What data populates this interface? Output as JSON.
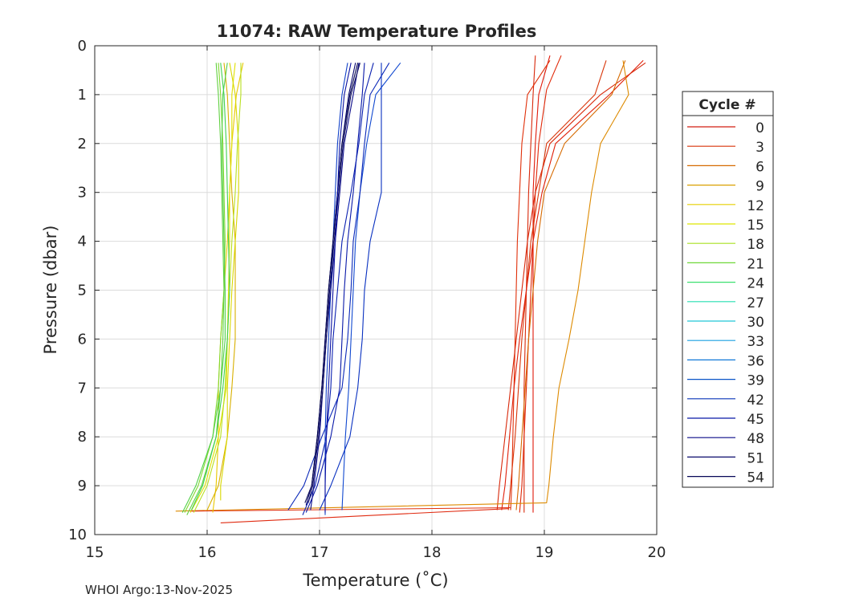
{
  "chart_data": {
    "type": "line",
    "title": "11074: RAW Temperature Profiles",
    "xlabel": "Temperature (˚C)",
    "ylabel": "Pressure (dbar)",
    "xlim": [
      15,
      20
    ],
    "ylim": [
      0,
      10
    ],
    "y_reversed": true,
    "grid": true,
    "x_ticks": [
      "15",
      "16",
      "17",
      "18",
      "19",
      "20"
    ],
    "y_ticks": [
      "0",
      "1",
      "2",
      "3",
      "4",
      "5",
      "6",
      "7",
      "8",
      "9",
      "10"
    ],
    "legend": {
      "title": "Cycle #",
      "placement": "right",
      "entries": [
        {
          "label": "0",
          "color": "#d21e10"
        },
        {
          "label": "3",
          "color": "#d9330a"
        },
        {
          "label": "6",
          "color": "#d66a00"
        },
        {
          "label": "9",
          "color": "#d9a000"
        },
        {
          "label": "12",
          "color": "#e6cf00"
        },
        {
          "label": "15",
          "color": "#dde600"
        },
        {
          "label": "18",
          "color": "#a8e020"
        },
        {
          "label": "21",
          "color": "#6ed838"
        },
        {
          "label": "24",
          "color": "#3ce070"
        },
        {
          "label": "27",
          "color": "#25dfb0"
        },
        {
          "label": "30",
          "color": "#20c8d8"
        },
        {
          "label": "33",
          "color": "#1a9fe0"
        },
        {
          "label": "36",
          "color": "#1078d8"
        },
        {
          "label": "39",
          "color": "#0a55c8"
        },
        {
          "label": "42",
          "color": "#0834b8"
        },
        {
          "label": "45",
          "color": "#0818a8"
        },
        {
          "label": "48",
          "color": "#0a0a88"
        },
        {
          "label": "51",
          "color": "#0a0a6c"
        },
        {
          "label": "54",
          "color": "#080858"
        }
      ]
    },
    "series": [
      {
        "name": "p01",
        "color": "#e01a0a",
        "temp": [
          19.05,
          18.95,
          18.92,
          18.9,
          18.9,
          18.9,
          18.9,
          18.9,
          18.9,
          18.9,
          18.9
        ],
        "pres": [
          0.2,
          1.0,
          2.0,
          3.0,
          4.0,
          5.0,
          6.0,
          7.0,
          8.0,
          9.0,
          9.55
        ]
      },
      {
        "name": "p02",
        "color": "#d8280a",
        "temp": [
          18.92,
          18.9,
          18.88,
          18.86,
          18.85,
          18.84,
          18.83,
          18.82,
          18.82,
          18.82,
          18.82
        ],
        "pres": [
          0.2,
          1.0,
          2.0,
          3.0,
          4.0,
          5.0,
          6.0,
          7.0,
          8.0,
          9.0,
          9.55
        ]
      },
      {
        "name": "p03",
        "color": "#e0300a",
        "temp": [
          19.05,
          18.85,
          18.8,
          18.78,
          18.76,
          18.75,
          18.74,
          18.73,
          18.72,
          18.71,
          18.7
        ],
        "pres": [
          0.3,
          1.0,
          2.0,
          3.0,
          4.0,
          5.0,
          6.0,
          7.0,
          8.0,
          9.0,
          9.5
        ]
      },
      {
        "name": "p04",
        "color": "#e02808",
        "temp": [
          19.15,
          19.02,
          18.95,
          18.92,
          18.9,
          18.88,
          18.86,
          18.84,
          18.82,
          18.8,
          18.78
        ],
        "pres": [
          0.2,
          0.9,
          2.0,
          3.0,
          4.0,
          5.0,
          6.0,
          7.0,
          8.0,
          9.0,
          9.55
        ]
      },
      {
        "name": "p05",
        "color": "#d8360a",
        "temp": [
          19.55,
          19.45,
          19.02,
          18.95,
          18.88,
          18.84,
          18.8,
          18.77,
          18.74,
          18.7,
          18.68
        ],
        "pres": [
          0.3,
          1.0,
          2.0,
          3.0,
          4.0,
          5.0,
          6.0,
          7.0,
          8.0,
          9.0,
          9.5
        ]
      },
      {
        "name": "p06",
        "color": "#e0200a",
        "temp": [
          19.88,
          19.58,
          19.1,
          18.98,
          18.9,
          18.84,
          18.78,
          18.73,
          18.69,
          18.65,
          18.62
        ],
        "pres": [
          0.3,
          1.0,
          2.0,
          3.0,
          4.0,
          5.0,
          6.0,
          7.0,
          8.0,
          9.0,
          9.5
        ]
      },
      {
        "name": "p07",
        "color": "#d8280a",
        "temp": [
          19.9,
          19.5,
          19.05,
          18.92,
          18.85,
          18.8,
          18.75,
          18.7,
          18.65,
          18.6,
          18.58
        ],
        "pres": [
          0.35,
          1.0,
          2.0,
          3.0,
          4.0,
          5.0,
          6.0,
          7.0,
          8.0,
          9.0,
          9.5
        ]
      },
      {
        "name": "p08",
        "color": "#d66a00",
        "temp": [
          19.72,
          19.6,
          19.18,
          19.0,
          18.94,
          18.9,
          18.86,
          18.83,
          18.8,
          18.77,
          18.75
        ],
        "pres": [
          0.3,
          1.0,
          2.0,
          3.0,
          4.0,
          5.0,
          6.0,
          7.0,
          8.0,
          9.0,
          9.5
        ]
      },
      {
        "name": "p09",
        "color": "#dd8a00",
        "temp": [
          19.7,
          19.75,
          19.5,
          19.42,
          19.36,
          19.3,
          19.22,
          19.13,
          19.08,
          19.04,
          19.02,
          15.72
        ],
        "pres": [
          0.3,
          1.0,
          2.0,
          3.0,
          4.0,
          5.0,
          6.0,
          7.0,
          8.0,
          9.0,
          9.35,
          9.52
        ]
      },
      {
        "name": "p10",
        "color": "#e03010",
        "temp": [
          18.7,
          15.85
        ],
        "pres": [
          9.45,
          9.52
        ]
      },
      {
        "name": "p11",
        "color": "#e02a10",
        "temp": [
          18.68,
          16.12
        ],
        "pres": [
          9.47,
          9.76
        ]
      },
      {
        "name": "y1",
        "color": "#e8c800",
        "temp": [
          16.32,
          16.26,
          16.22,
          16.2,
          16.18,
          16.15,
          16.12,
          16.1,
          16.1,
          16.08,
          16.05
        ],
        "pres": [
          0.35,
          1.0,
          2.0,
          3.0,
          4.0,
          5.0,
          6.0,
          7.0,
          8.0,
          9.0,
          9.55
        ]
      },
      {
        "name": "y2",
        "color": "#d8b000",
        "temp": [
          16.15,
          16.18,
          16.2,
          16.22,
          16.25,
          16.25,
          16.25,
          16.22,
          16.18,
          16.1,
          16.0
        ],
        "pres": [
          0.35,
          1.0,
          2.0,
          3.0,
          4.0,
          5.0,
          6.0,
          7.0,
          8.0,
          9.0,
          9.5
        ]
      },
      {
        "name": "y3",
        "color": "#e0e000",
        "temp": [
          16.25,
          16.22,
          16.22,
          16.2,
          16.2,
          16.19,
          16.18,
          16.17,
          16.1,
          15.98,
          15.85
        ],
        "pres": [
          0.35,
          1.0,
          2.0,
          3.0,
          4.0,
          5.0,
          6.0,
          7.0,
          8.0,
          9.0,
          9.55
        ]
      },
      {
        "name": "y4",
        "color": "#d8d800",
        "temp": [
          16.2,
          16.25,
          16.28,
          16.28,
          16.25,
          16.22,
          16.2,
          16.18,
          16.18,
          16.12,
          16.12
        ],
        "pres": [
          0.35,
          1.0,
          2.0,
          3.0,
          4.0,
          5.0,
          6.0,
          7.0,
          8.0,
          9.0,
          9.3
        ]
      },
      {
        "name": "y5",
        "color": "#b8e020",
        "temp": [
          16.3,
          16.3,
          16.27,
          16.25,
          16.22,
          16.2,
          16.18,
          16.16,
          16.12,
          16.0,
          15.88
        ],
        "pres": [
          0.35,
          1.0,
          2.0,
          3.0,
          4.0,
          5.0,
          6.0,
          7.0,
          8.0,
          9.0,
          9.55
        ]
      },
      {
        "name": "g1",
        "color": "#80d830",
        "temp": [
          16.1,
          16.12,
          16.14,
          16.15,
          16.16,
          16.15,
          16.12,
          16.1,
          16.05,
          15.92,
          15.8
        ],
        "pres": [
          0.35,
          1.0,
          2.0,
          3.0,
          4.0,
          5.0,
          6.0,
          7.0,
          8.0,
          9.0,
          9.55
        ]
      },
      {
        "name": "g2",
        "color": "#60d040",
        "temp": [
          16.08,
          16.1,
          16.12,
          16.13,
          16.14,
          16.15,
          16.14,
          16.12,
          16.08,
          15.95,
          15.82
        ],
        "pres": [
          0.35,
          1.0,
          2.0,
          3.0,
          4.0,
          5.0,
          6.0,
          7.0,
          8.0,
          9.0,
          9.6
        ]
      },
      {
        "name": "g3",
        "color": "#50d048",
        "temp": [
          16.18,
          16.14,
          16.13,
          16.14,
          16.15,
          16.16,
          16.16,
          16.12,
          16.05,
          15.9,
          15.78
        ],
        "pres": [
          0.35,
          1.0,
          2.0,
          3.0,
          4.0,
          5.0,
          6.0,
          7.0,
          8.0,
          9.0,
          9.55
        ]
      },
      {
        "name": "g4",
        "color": "#40d050",
        "temp": [
          16.12,
          16.15,
          16.17,
          16.18,
          16.19,
          16.2,
          16.18,
          16.14,
          16.08,
          15.96,
          15.86
        ],
        "pres": [
          0.35,
          1.0,
          2.0,
          3.0,
          4.0,
          5.0,
          6.0,
          7.0,
          8.0,
          9.0,
          9.5
        ]
      },
      {
        "name": "b1",
        "color": "#1048d0",
        "temp": [
          17.72,
          17.5,
          17.42,
          17.36,
          17.32,
          17.3,
          17.28,
          17.26,
          17.23,
          17.21,
          17.2
        ],
        "pres": [
          0.35,
          1.0,
          2.0,
          3.0,
          4.0,
          5.0,
          6.0,
          7.0,
          8.0,
          9.0,
          9.5
        ]
      },
      {
        "name": "b2",
        "color": "#0830c0",
        "temp": [
          17.55,
          17.55,
          17.55,
          17.55,
          17.45,
          17.4,
          17.38,
          17.34,
          17.27,
          17.1,
          17.0
        ],
        "pres": [
          0.35,
          1.0,
          2.0,
          3.0,
          4.0,
          5.0,
          6.0,
          7.0,
          8.0,
          9.0,
          9.5
        ]
      },
      {
        "name": "b3",
        "color": "#0a28b8",
        "temp": [
          17.62,
          17.45,
          17.4,
          17.36,
          17.3,
          17.28,
          17.25,
          17.2,
          17.02,
          16.86,
          16.72
        ],
        "pres": [
          0.35,
          1.0,
          2.0,
          3.0,
          4.0,
          5.0,
          6.0,
          7.0,
          8.0,
          9.0,
          9.5
        ]
      },
      {
        "name": "b4",
        "color": "#0818a8",
        "temp": [
          17.4,
          17.38,
          17.34,
          17.3,
          17.25,
          17.22,
          17.2,
          17.18,
          17.1,
          16.98,
          16.88
        ],
        "pres": [
          0.35,
          1.0,
          2.0,
          3.0,
          4.0,
          5.0,
          6.0,
          7.0,
          8.0,
          9.0,
          9.55
        ]
      },
      {
        "name": "b5",
        "color": "#0a20b0",
        "temp": [
          17.48,
          17.4,
          17.35,
          17.28,
          17.2,
          17.16,
          17.12,
          17.1,
          17.06,
          16.96,
          16.85
        ],
        "pres": [
          0.35,
          1.0,
          2.0,
          3.0,
          4.0,
          5.0,
          6.0,
          7.0,
          8.0,
          9.0,
          9.6
        ]
      },
      {
        "name": "b6",
        "color": "#1040c8",
        "temp": [
          17.25,
          17.2,
          17.16,
          17.14,
          17.12,
          17.1,
          17.08,
          17.06,
          17.05,
          17.05,
          17.05
        ],
        "pres": [
          0.35,
          1.0,
          2.0,
          3.0,
          4.0,
          5.0,
          6.0,
          7.0,
          8.0,
          9.0,
          9.6
        ]
      },
      {
        "name": "b7",
        "color": "#0a0a88",
        "temp": [
          17.35,
          17.3,
          17.22,
          17.18,
          17.14,
          17.1,
          17.06,
          17.03,
          17.0,
          16.95,
          16.92
        ],
        "pres": [
          0.35,
          1.0,
          2.0,
          3.0,
          4.0,
          5.0,
          6.0,
          7.0,
          8.0,
          9.0,
          9.5
        ]
      },
      {
        "name": "b8",
        "color": "#080870",
        "temp": [
          17.32,
          17.26,
          17.2,
          17.16,
          17.12,
          17.08,
          17.05,
          17.02,
          16.98,
          16.93,
          16.88
        ],
        "pres": [
          0.35,
          1.0,
          2.0,
          3.0,
          4.0,
          5.0,
          6.0,
          7.0,
          8.0,
          9.0,
          9.4
        ]
      },
      {
        "name": "b9",
        "color": "#0a0a60",
        "temp": [
          17.36,
          17.28,
          17.21,
          17.17,
          17.13,
          17.09,
          17.06,
          17.03,
          16.99,
          16.94,
          16.9
        ],
        "pres": [
          0.35,
          1.0,
          2.0,
          3.0,
          4.0,
          5.0,
          6.0,
          7.0,
          8.0,
          9.0,
          9.35
        ]
      },
      {
        "name": "b10",
        "color": "#060650",
        "temp": [
          17.34,
          17.27,
          17.2,
          17.16,
          17.12,
          17.08,
          17.05,
          17.02,
          16.98,
          16.93,
          16.87
        ],
        "pres": [
          0.35,
          1.0,
          2.0,
          3.0,
          4.0,
          5.0,
          6.0,
          7.0,
          8.0,
          9.0,
          9.35
        ]
      },
      {
        "name": "b11",
        "color": "#0a10a0",
        "temp": [
          17.28,
          17.22,
          17.18,
          17.16,
          17.14,
          17.12,
          17.1,
          17.08,
          17.06,
          17.05,
          17.05
        ],
        "pres": [
          0.35,
          1.0,
          2.0,
          3.0,
          4.0,
          5.0,
          6.0,
          7.0,
          8.0,
          9.0,
          9.55
        ]
      }
    ]
  },
  "footer": {
    "text": "WHOI Argo:13-Nov-2025"
  }
}
